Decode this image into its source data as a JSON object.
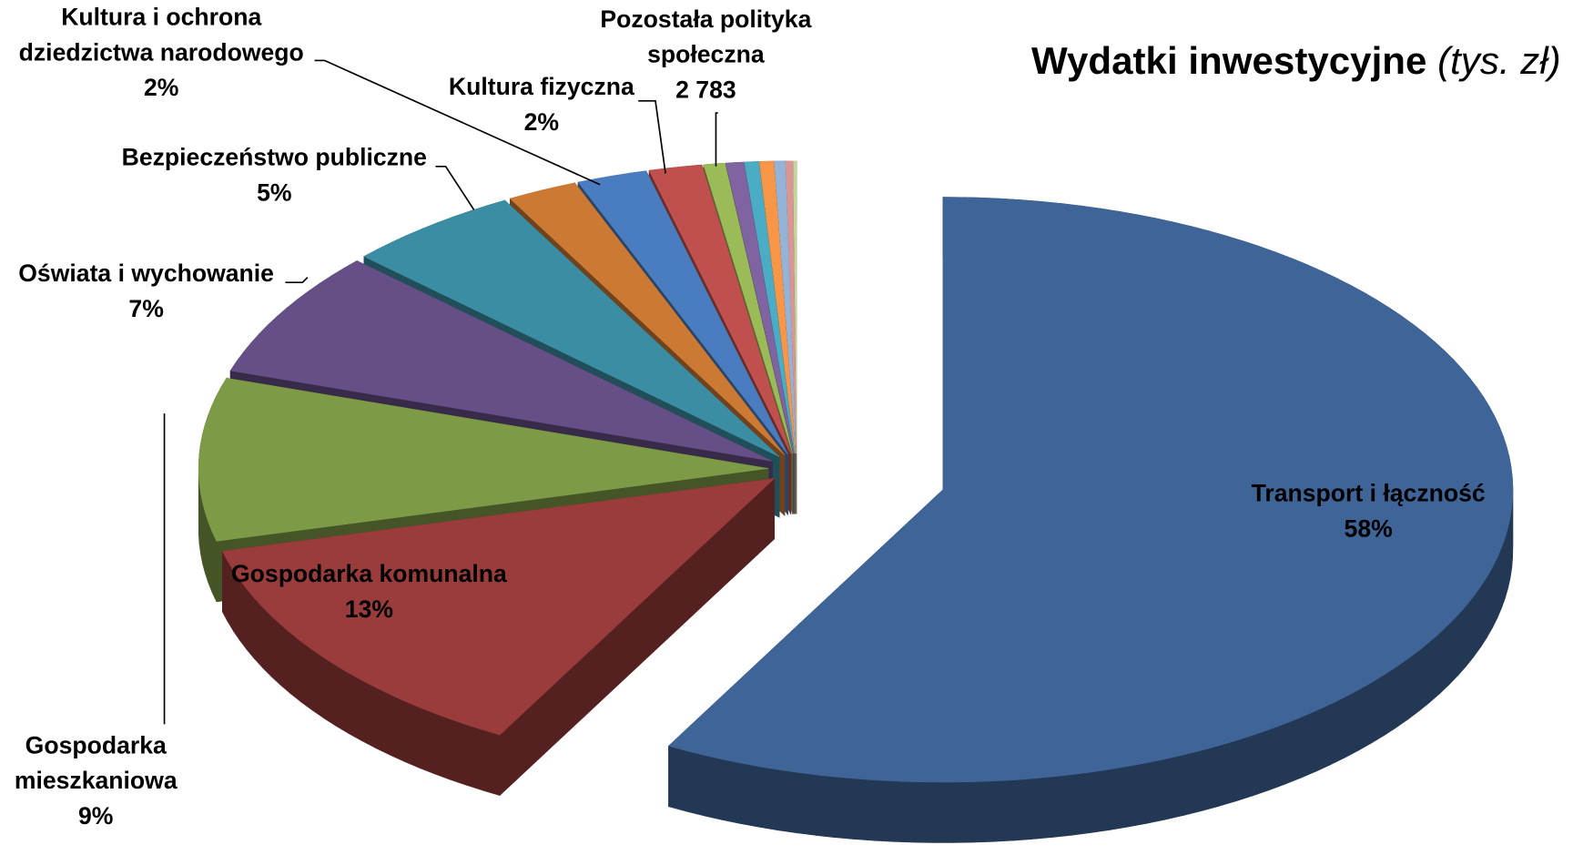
{
  "chart_data": {
    "type": "pie3d",
    "title": "Wydatki inwestycyjne",
    "title_unit": "(tys. zł)",
    "categories": [
      "Transport i łączność",
      "Gospodarka komunalna",
      "Gospodarka mieszkaniowa",
      "Oświata i wychowanie",
      "Bezpieczeństwo publiczne",
      "Kultura i ochrona dziedzictwa narodowego",
      "Kultura fizyczna",
      "Pozostała polityka społeczna",
      null,
      null,
      null,
      null,
      null,
      null,
      null
    ],
    "values": [
      58,
      13,
      9,
      7,
      5,
      2,
      2,
      1.5,
      0.6,
      0.5,
      0.4,
      0.4,
      0.3,
      0.2,
      0.1
    ],
    "value_labels": [
      "58%",
      "13%",
      "9%",
      "7%",
      "5%",
      "2%",
      "2%",
      null,
      null,
      null,
      null,
      null,
      null,
      null,
      null
    ],
    "amount_labels": [
      null,
      null,
      null,
      null,
      null,
      null,
      null,
      "2 783",
      null,
      null,
      null,
      null,
      null,
      null,
      null
    ],
    "colors": [
      "#3f6598",
      "#9a3c3b",
      "#7d9b47",
      "#664f86",
      "#3a8da2",
      "#cc7a33",
      "#4a7dbf",
      "#c0504d",
      "#9bbb59",
      "#8064a2",
      "#4bacc6",
      "#f79646",
      "#95b3d7",
      "#d99694",
      "#c3d69b"
    ]
  }
}
